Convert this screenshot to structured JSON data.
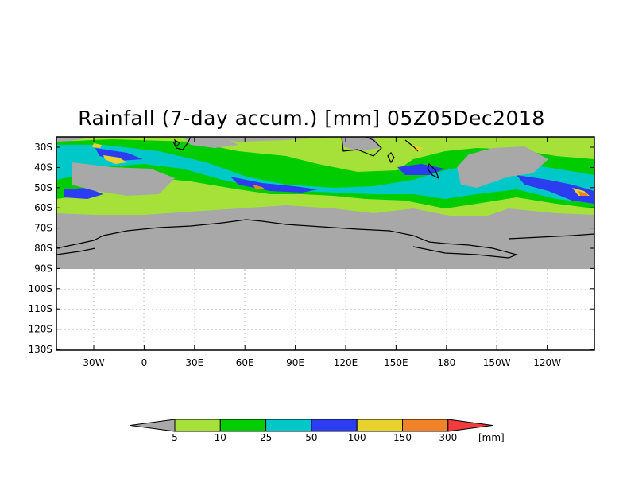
{
  "title": "Rainfall (7-day accum.) [mm] 05Z05Dec2018",
  "map": {
    "region": "Southern Hemisphere mid-latitudes",
    "no_data_color": "#a8a8a8",
    "coastline_color": "#000000"
  },
  "lat_labels": [
    "30S",
    "40S",
    "50S",
    "60S",
    "70S",
    "80S",
    "90S",
    "100S",
    "110S",
    "120S",
    "130S"
  ],
  "lon_labels": [
    "30W",
    "0",
    "30E",
    "60E",
    "90E",
    "120E",
    "150E",
    "180",
    "150W",
    "120W"
  ],
  "colorbar": {
    "tick_labels": [
      "5",
      "10",
      "25",
      "50",
      "100",
      "150",
      "300"
    ],
    "unit": "[mm]",
    "colors": [
      "#a8a8a8",
      "#a6e13a",
      "#00cc00",
      "#00c8c8",
      "#2c3cf0",
      "#e8d22e",
      "#f08228",
      "#f03c3c"
    ]
  }
}
